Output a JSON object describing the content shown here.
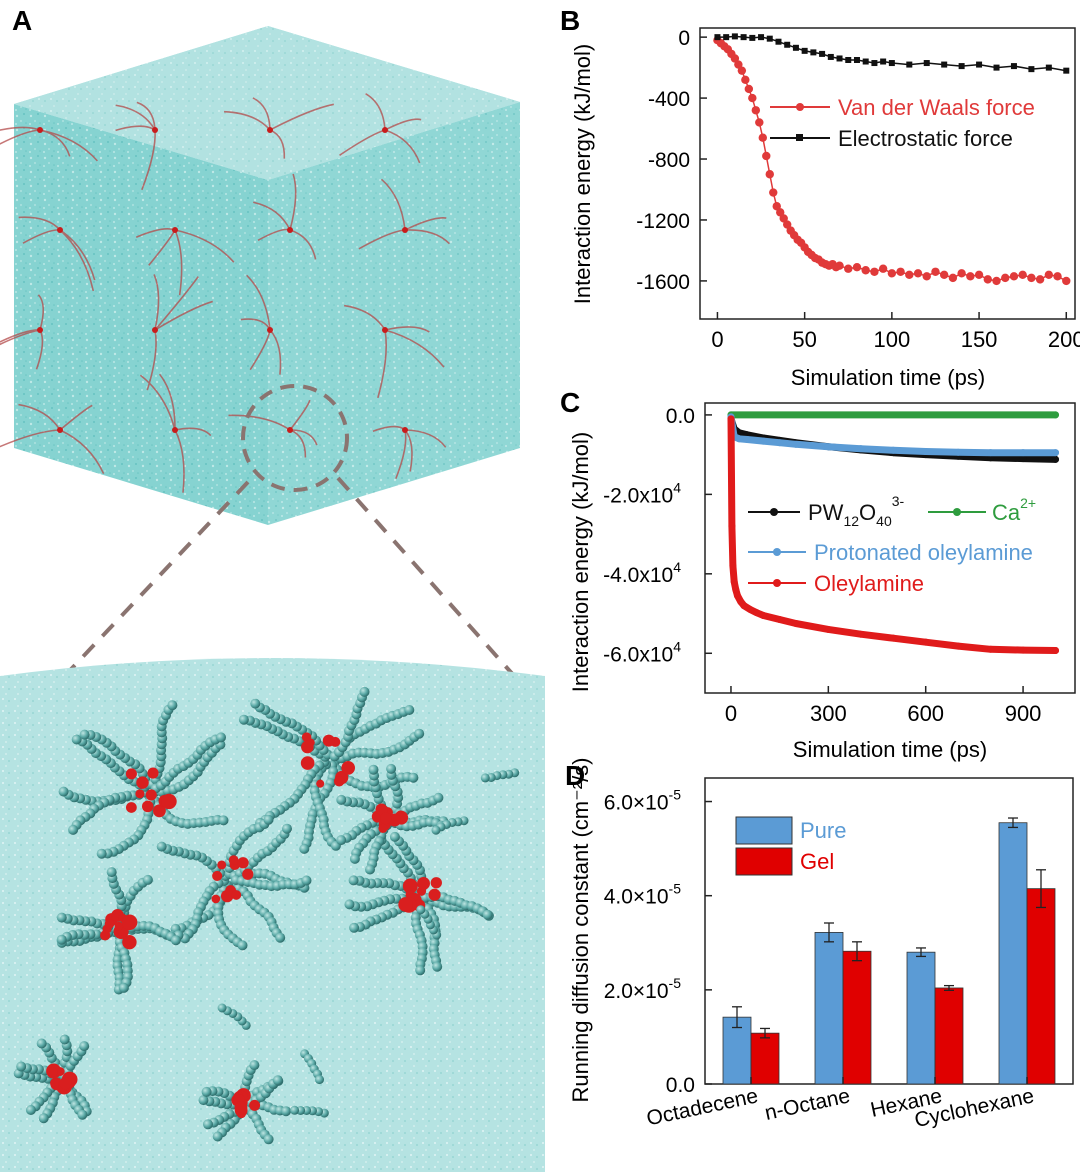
{
  "panels": {
    "a": {
      "letter": "A"
    },
    "b": {
      "letter": "B"
    },
    "c": {
      "letter": "C"
    },
    "d": {
      "letter": "D"
    }
  },
  "colors": {
    "water": "#7fd0cf",
    "water_dark": "#5fb8b8",
    "molecule": "#4fa3a0",
    "molecule_core": "#d91f1f",
    "vdw": "#e03a3a",
    "electrostatic": "#111111",
    "pw": "#111111",
    "ca": "#2e9c3e",
    "protonated": "#5b9bd5",
    "oleylamine": "#e01b1b",
    "pure": "#5b9bd5",
    "gel": "#e00000",
    "zoom_ring": "#8a7470"
  },
  "chart_data": [
    {
      "panel": "B",
      "type": "line",
      "xlabel": "Simulation time (ps)",
      "ylabel": "Interaction energy (kJ/mol)",
      "xlim": [
        -10,
        205
      ],
      "ylim": [
        -1850,
        60
      ],
      "xticks": [
        0,
        50,
        100,
        150,
        200
      ],
      "yticks": [
        0,
        -400,
        -800,
        -1200,
        -1600
      ],
      "legend_position": "middle-right",
      "series": [
        {
          "name": "Van der Waals force",
          "marker": "circle",
          "color": "#e03a3a",
          "x": [
            0,
            2,
            4,
            6,
            8,
            10,
            12,
            14,
            16,
            18,
            20,
            22,
            24,
            26,
            28,
            30,
            32,
            34,
            36,
            38,
            40,
            42,
            44,
            46,
            48,
            50,
            52,
            54,
            56,
            58,
            60,
            62,
            64,
            66,
            68,
            70,
            75,
            80,
            85,
            90,
            95,
            100,
            105,
            110,
            115,
            120,
            125,
            130,
            135,
            140,
            145,
            150,
            155,
            160,
            165,
            170,
            175,
            180,
            185,
            190,
            195,
            200
          ],
          "y": [
            -20,
            -40,
            -60,
            -80,
            -110,
            -140,
            -180,
            -220,
            -280,
            -340,
            -400,
            -480,
            -560,
            -660,
            -780,
            -900,
            -1020,
            -1110,
            -1150,
            -1190,
            -1230,
            -1270,
            -1300,
            -1330,
            -1350,
            -1380,
            -1410,
            -1430,
            -1450,
            -1460,
            -1480,
            -1490,
            -1500,
            -1490,
            -1510,
            -1500,
            -1520,
            -1510,
            -1530,
            -1540,
            -1520,
            -1550,
            -1540,
            -1560,
            -1550,
            -1570,
            -1540,
            -1560,
            -1580,
            -1550,
            -1570,
            -1560,
            -1590,
            -1600,
            -1580,
            -1570,
            -1560,
            -1580,
            -1590,
            -1560,
            -1570,
            -1600
          ]
        },
        {
          "name": "Electrostatic force",
          "marker": "square",
          "color": "#111111",
          "x": [
            0,
            5,
            10,
            15,
            20,
            25,
            30,
            35,
            40,
            45,
            50,
            55,
            60,
            65,
            70,
            75,
            80,
            85,
            90,
            95,
            100,
            110,
            120,
            130,
            140,
            150,
            160,
            170,
            180,
            190,
            200
          ],
          "y": [
            0,
            0,
            5,
            0,
            -5,
            0,
            -10,
            -30,
            -50,
            -70,
            -90,
            -100,
            -110,
            -130,
            -140,
            -150,
            -150,
            -160,
            -170,
            -160,
            -170,
            -180,
            -170,
            -180,
            -190,
            -180,
            -200,
            -190,
            -210,
            -200,
            -220
          ]
        }
      ]
    },
    {
      "panel": "C",
      "type": "line",
      "xlabel": "Simulation time (ps)",
      "ylabel": "Interaction energy (kJ/mol)",
      "xlim": [
        -80,
        1060
      ],
      "ylim": [
        -70000,
        3000
      ],
      "xticks": [
        0,
        300,
        600,
        900
      ],
      "yticks": [
        0,
        -20000,
        -40000,
        -60000
      ],
      "ytick_labels": [
        "0.0",
        "-2.0x10",
        "-4.0x10",
        "-6.0x10"
      ],
      "ytick_exponent": "4",
      "legend_position": "middle-right",
      "legend_pw_base": "PW",
      "legend_pw_sub1": "12",
      "legend_pw_o": "O",
      "legend_pw_sub2": "40",
      "legend_pw_sup": "3-",
      "legend_ca_base": "Ca",
      "legend_ca_sup": "2+",
      "series": [
        {
          "name": "PW12O40 3-",
          "color": "#111111",
          "x": [
            0,
            10,
            25,
            50,
            100,
            150,
            200,
            300,
            400,
            500,
            600,
            700,
            800,
            900,
            1000
          ],
          "y": [
            -1000,
            -3500,
            -4500,
            -5000,
            -5800,
            -6400,
            -7000,
            -8000,
            -8800,
            -9500,
            -10000,
            -10400,
            -10800,
            -11000,
            -11200
          ]
        },
        {
          "name": "Ca2+",
          "color": "#2e9c3e",
          "x": [
            0,
            1000
          ],
          "y": [
            0,
            0
          ]
        },
        {
          "name": "Protonated oleylamine",
          "color": "#5b9bd5",
          "x": [
            0,
            10,
            25,
            50,
            100,
            150,
            200,
            300,
            400,
            500,
            600,
            700,
            800,
            900,
            1000
          ],
          "y": [
            -500,
            -5500,
            -6000,
            -6200,
            -6600,
            -7000,
            -7400,
            -8000,
            -8500,
            -8900,
            -9200,
            -9400,
            -9500,
            -9500,
            -9500
          ]
        },
        {
          "name": "Oleylamine",
          "color": "#e01b1b",
          "x": [
            0,
            3,
            6,
            10,
            15,
            20,
            30,
            40,
            60,
            80,
            100,
            150,
            200,
            300,
            400,
            500,
            600,
            700,
            800,
            900,
            1000
          ],
          "y": [
            -1000,
            -28000,
            -38000,
            -42000,
            -44000,
            -45500,
            -47000,
            -48000,
            -49000,
            -49800,
            -50500,
            -51500,
            -52500,
            -54000,
            -55200,
            -56200,
            -57200,
            -58200,
            -59000,
            -59200,
            -59300
          ]
        }
      ]
    },
    {
      "panel": "D",
      "type": "bar",
      "ylabel": "Running diffusion constant (cm⁻²/s)",
      "categories": [
        "Octadecene",
        "n-Octane",
        "Hexane",
        "Cyclohexane"
      ],
      "ylim": [
        0,
        6.5e-05
      ],
      "yticks": [
        0,
        2e-05,
        4e-05,
        6e-05
      ],
      "ytick_labels": [
        "0.0",
        "2.0×10",
        "4.0×10",
        "6.0×10"
      ],
      "ytick_exponent": "-5",
      "legend_position": "top-left",
      "series": [
        {
          "name": "Pure",
          "color": "#5b9bd5",
          "values": [
            1.42e-05,
            3.22e-05,
            2.8e-05,
            5.55e-05
          ],
          "errors": [
            2.2e-06,
            2e-06,
            9e-07,
            1e-06
          ]
        },
        {
          "name": "Gel",
          "color": "#e00000",
          "values": [
            1.08e-05,
            2.82e-05,
            2.04e-05,
            4.15e-05
          ],
          "errors": [
            1e-06,
            2e-06,
            5e-07,
            4e-06
          ]
        }
      ]
    }
  ]
}
